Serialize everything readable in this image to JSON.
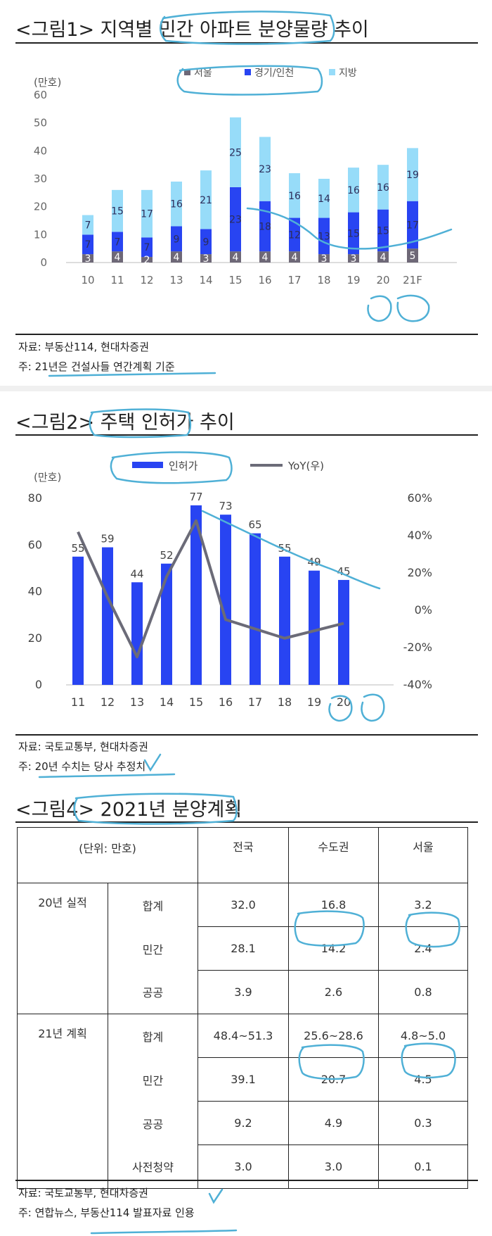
{
  "figure1": {
    "title": "<그림1> 지역별 민간 아파트 분양물량 추이",
    "unit": "(만호)",
    "source": "자료: 부동산114, 현대차증권",
    "note": "주: 21년은 건설사들 연간계획 기준"
  },
  "figure2": {
    "title": "<그림2> 주택 인허가 추이",
    "unit": "(만호)",
    "source": "자료: 국토교통부, 현대차증권",
    "note": "주: 20년 수치는 당사 추정치"
  },
  "figure4": {
    "title": "<그림4> 2021년 분양계획",
    "source": "자료: 국토교통부, 현대차증권",
    "note": "주: 연합뉴스, 부동산114 발표자료 인용",
    "table": {
      "header": [
        "(단위: 만호)",
        "전국",
        "수도권",
        "서울"
      ],
      "groups": [
        {
          "label": "20년 실적",
          "rows": [
            {
              "label": "합계",
              "values": [
                "32.0",
                "16.8",
                "3.2"
              ]
            },
            {
              "label": "민간",
              "values": [
                "28.1",
                "14.2",
                "2.4"
              ]
            },
            {
              "label": "공공",
              "values": [
                "3.9",
                "2.6",
                "0.8"
              ]
            }
          ]
        },
        {
          "label": "21년 계획",
          "rows": [
            {
              "label": "합계",
              "values": [
                "48.4~51.3",
                "25.6~28.6",
                "4.8~5.0"
              ]
            },
            {
              "label": "민간",
              "values": [
                "39.1",
                "20.7",
                "4.5"
              ]
            },
            {
              "label": "공공",
              "values": [
                "9.2",
                "4.9",
                "0.3"
              ]
            },
            {
              "label": "사전청약",
              "values": [
                "3.0",
                "3.0",
                "0.1"
              ]
            }
          ]
        }
      ]
    }
  },
  "colors": {
    "seoul": "#6e6877",
    "gyeonggi": "#2844f2",
    "jibang": "#97dcf9",
    "permit_bar": "#2844f2",
    "yoy_line": "#6b6b78",
    "annotation": "#4fb0d6"
  },
  "chart_data": [
    {
      "type": "bar",
      "stacked": true,
      "title": "<그림1> 지역별 민간 아파트 분양물량 추이",
      "ylabel": "(만호)",
      "ylim": [
        0,
        60
      ],
      "yticks": [
        "0",
        "10",
        "20",
        "30",
        "40",
        "50",
        "60"
      ],
      "categories": [
        "10",
        "11",
        "12",
        "13",
        "14",
        "15",
        "16",
        "17",
        "18",
        "19",
        "20",
        "21F"
      ],
      "series": [
        {
          "name": "서울",
          "values": [
            3,
            4,
            2,
            4,
            3,
            4,
            4,
            4,
            3,
            3,
            4,
            5
          ],
          "labels": [
            "3",
            "4",
            "2",
            "4",
            "3",
            "4",
            "4",
            "4",
            "3",
            "3",
            "4",
            "5"
          ]
        },
        {
          "name": "경기/인천",
          "values": [
            7,
            7,
            7,
            9,
            9,
            23,
            18,
            12,
            13,
            15,
            15,
            17
          ],
          "labels": [
            "7",
            "7",
            "7",
            "9",
            "9",
            "23",
            "18",
            "12",
            "13",
            "15",
            "15",
            "17"
          ]
        },
        {
          "name": "지방",
          "values": [
            7,
            15,
            17,
            16,
            21,
            25,
            23,
            16,
            14,
            16,
            16,
            19
          ],
          "labels": [
            "7",
            "15",
            "17",
            "16",
            "21",
            "25",
            "23",
            "16",
            "14",
            "16",
            "16",
            "19"
          ]
        }
      ],
      "legend": {
        "position": "top",
        "entries": [
          "서울",
          "경기/인천",
          "지방"
        ]
      }
    },
    {
      "type": "bar",
      "title": "<그림2> 주택 인허가 추이",
      "ylabel": "(만호)",
      "ylim": [
        0,
        80
      ],
      "y2lim": [
        -40,
        60
      ],
      "yticks": [
        "0",
        "20",
        "40",
        "60",
        "80"
      ],
      "y2ticks": [
        "-40%",
        "-20%",
        "0%",
        "20%",
        "40%",
        "60%"
      ],
      "categories": [
        "11",
        "12",
        "13",
        "14",
        "15",
        "16",
        "17",
        "18",
        "19",
        "20"
      ],
      "series": [
        {
          "name": "인허가",
          "type": "bar",
          "values": [
            55,
            59,
            44,
            52,
            77,
            73,
            65,
            55,
            49,
            45
          ],
          "labels": [
            "55",
            "59",
            "44",
            "52",
            "77",
            "73",
            "65",
            "55",
            "49",
            "45"
          ]
        },
        {
          "name": "YoY(우)",
          "type": "line",
          "axis": "right",
          "values": [
            42,
            7,
            -25,
            18,
            48,
            -5,
            -10,
            -15,
            -11,
            -7
          ]
        }
      ],
      "legend": {
        "position": "top",
        "entries": [
          "인허가",
          "YoY(우)"
        ]
      }
    }
  ]
}
